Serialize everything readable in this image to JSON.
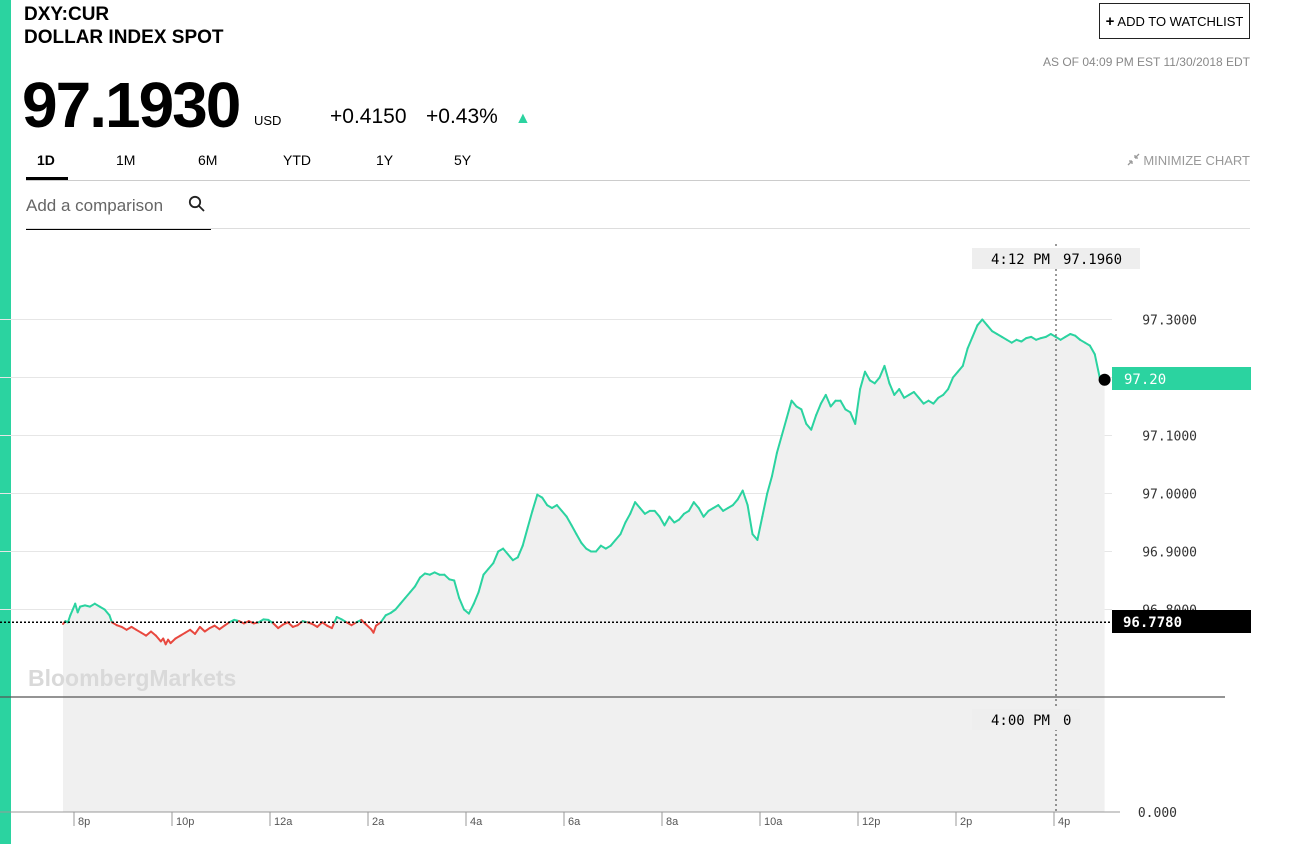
{
  "header": {
    "ticker": "DXY:CUR",
    "name": "DOLLAR INDEX SPOT",
    "price": "97.1930",
    "currency": "USD",
    "change": "+0.4150",
    "change_pct": "+0.43%",
    "watchlist_label": "ADD TO WATCHLIST",
    "as_of": "AS OF 04:09 PM EST 11/30/2018 EDT"
  },
  "tabs": [
    "1D",
    "1M",
    "6M",
    "YTD",
    "1Y",
    "5Y"
  ],
  "active_tab": "1D",
  "minimize_label": "MINIMIZE CHART",
  "compare": {
    "placeholder": "Add a comparison"
  },
  "colors": {
    "accent": "#2bd3a0",
    "up": "#2bd3a0",
    "down": "#e8483f",
    "area": "#f0f0f0"
  },
  "chart_data": {
    "type": "line",
    "watermark": "BloombergMarkets",
    "x_ticks": [
      "8p",
      "10p",
      "12a",
      "2a",
      "4a",
      "6a",
      "8a",
      "10a",
      "12p",
      "2p",
      "4p"
    ],
    "y_ticks": [
      "97.3000",
      "97.1000",
      "97.0000",
      "96.9000",
      "96.8000"
    ],
    "y_extra_tick": "0.000",
    "ylim": [
      96.64,
      97.41
    ],
    "previous_close": 96.778,
    "previous_close_label": "96.7780",
    "last_value": 97.2,
    "last_value_label": "97.20",
    "crosshair": {
      "time": "4:12 PM",
      "value": "97.1960"
    },
    "volume_readout": {
      "time": "4:00 PM",
      "value": "0"
    },
    "series": [
      {
        "values": [
          [
            0,
            96.775
          ],
          [
            0.05,
            96.78
          ],
          [
            0.1,
            96.778
          ],
          [
            0.15,
            96.79
          ],
          [
            0.2,
            96.8
          ],
          [
            0.25,
            96.81
          ],
          [
            0.3,
            96.795
          ],
          [
            0.35,
            96.805
          ],
          [
            0.45,
            96.807
          ],
          [
            0.55,
            96.805
          ],
          [
            0.65,
            96.81
          ],
          [
            0.75,
            96.805
          ],
          [
            0.85,
            96.8
          ],
          [
            0.95,
            96.79
          ],
          [
            1.0,
            96.778
          ],
          [
            1.1,
            96.773
          ],
          [
            1.2,
            96.77
          ],
          [
            1.3,
            96.765
          ],
          [
            1.4,
            96.77
          ],
          [
            1.5,
            96.765
          ],
          [
            1.6,
            96.76
          ],
          [
            1.7,
            96.755
          ],
          [
            1.8,
            96.762
          ],
          [
            1.9,
            96.755
          ],
          [
            2.0,
            96.745
          ],
          [
            2.05,
            96.75
          ],
          [
            2.1,
            96.74
          ],
          [
            2.15,
            96.748
          ],
          [
            2.2,
            96.742
          ],
          [
            2.3,
            96.75
          ],
          [
            2.4,
            96.755
          ],
          [
            2.5,
            96.76
          ],
          [
            2.6,
            96.765
          ],
          [
            2.7,
            96.758
          ],
          [
            2.8,
            96.77
          ],
          [
            2.9,
            96.762
          ],
          [
            3.0,
            96.768
          ],
          [
            3.1,
            96.772
          ],
          [
            3.2,
            96.766
          ],
          [
            3.3,
            96.772
          ],
          [
            3.4,
            96.778
          ],
          [
            3.5,
            96.782
          ],
          [
            3.6,
            96.78
          ],
          [
            3.7,
            96.776
          ],
          [
            3.8,
            96.78
          ],
          [
            3.9,
            96.776
          ],
          [
            4.0,
            96.778
          ],
          [
            4.1,
            96.783
          ],
          [
            4.2,
            96.782
          ],
          [
            4.3,
            96.776
          ],
          [
            4.4,
            96.768
          ],
          [
            4.5,
            96.774
          ],
          [
            4.6,
            96.778
          ],
          [
            4.7,
            96.77
          ],
          [
            4.8,
            96.773
          ],
          [
            4.9,
            96.78
          ],
          [
            5.0,
            96.778
          ],
          [
            5.1,
            96.775
          ],
          [
            5.2,
            96.77
          ],
          [
            5.3,
            96.778
          ],
          [
            5.4,
            96.772
          ],
          [
            5.5,
            96.768
          ],
          [
            5.55,
            96.778
          ],
          [
            5.6,
            96.787
          ],
          [
            5.7,
            96.783
          ],
          [
            5.8,
            96.778
          ],
          [
            5.9,
            96.773
          ],
          [
            6.0,
            96.778
          ],
          [
            6.1,
            96.782
          ],
          [
            6.2,
            96.774
          ],
          [
            6.3,
            96.766
          ],
          [
            6.35,
            96.76
          ],
          [
            6.4,
            96.772
          ],
          [
            6.5,
            96.778
          ],
          [
            6.6,
            96.79
          ],
          [
            6.7,
            96.794
          ],
          [
            6.8,
            96.8
          ],
          [
            6.9,
            96.81
          ],
          [
            7.0,
            96.82
          ],
          [
            7.1,
            96.83
          ],
          [
            7.2,
            96.84
          ],
          [
            7.3,
            96.855
          ],
          [
            7.4,
            96.862
          ],
          [
            7.5,
            96.86
          ],
          [
            7.6,
            96.864
          ],
          [
            7.7,
            96.86
          ],
          [
            7.8,
            96.86
          ],
          [
            7.9,
            96.852
          ],
          [
            8.0,
            96.85
          ],
          [
            8.1,
            96.82
          ],
          [
            8.2,
            96.8
          ],
          [
            8.3,
            96.793
          ],
          [
            8.4,
            96.81
          ],
          [
            8.5,
            96.83
          ],
          [
            8.6,
            96.86
          ],
          [
            8.7,
            96.87
          ],
          [
            8.8,
            96.88
          ],
          [
            8.9,
            96.9
          ],
          [
            9.0,
            96.905
          ],
          [
            9.1,
            96.895
          ],
          [
            9.2,
            96.885
          ],
          [
            9.3,
            96.89
          ],
          [
            9.4,
            96.91
          ],
          [
            9.5,
            96.94
          ],
          [
            9.6,
            96.97
          ],
          [
            9.7,
            96.998
          ],
          [
            9.8,
            96.993
          ],
          [
            9.9,
            96.98
          ],
          [
            10.0,
            96.975
          ],
          [
            10.1,
            96.98
          ],
          [
            10.2,
            96.97
          ],
          [
            10.3,
            96.96
          ],
          [
            10.4,
            96.945
          ],
          [
            10.5,
            96.93
          ],
          [
            10.6,
            96.915
          ],
          [
            10.7,
            96.905
          ],
          [
            10.8,
            96.9
          ],
          [
            10.9,
            96.9
          ],
          [
            11.0,
            96.91
          ],
          [
            11.1,
            96.905
          ],
          [
            11.2,
            96.91
          ],
          [
            11.3,
            96.92
          ],
          [
            11.4,
            96.93
          ],
          [
            11.5,
            96.95
          ],
          [
            11.6,
            96.965
          ],
          [
            11.7,
            96.985
          ],
          [
            11.8,
            96.975
          ],
          [
            11.9,
            96.965
          ],
          [
            12.0,
            96.97
          ],
          [
            12.1,
            96.97
          ],
          [
            12.2,
            96.96
          ],
          [
            12.3,
            96.945
          ],
          [
            12.4,
            96.96
          ],
          [
            12.5,
            96.95
          ],
          [
            12.6,
            96.955
          ],
          [
            12.7,
            96.965
          ],
          [
            12.8,
            96.97
          ],
          [
            12.9,
            96.985
          ],
          [
            13.0,
            96.975
          ],
          [
            13.1,
            96.96
          ],
          [
            13.2,
            96.97
          ],
          [
            13.3,
            96.975
          ],
          [
            13.4,
            96.98
          ],
          [
            13.5,
            96.97
          ],
          [
            13.6,
            96.975
          ],
          [
            13.7,
            96.98
          ],
          [
            13.8,
            96.99
          ],
          [
            13.9,
            97.005
          ],
          [
            14.0,
            96.98
          ],
          [
            14.1,
            96.93
          ],
          [
            14.2,
            96.92
          ],
          [
            14.3,
            96.96
          ],
          [
            14.4,
            97.0
          ],
          [
            14.5,
            97.03
          ],
          [
            14.6,
            97.07
          ],
          [
            14.7,
            97.1
          ],
          [
            14.8,
            97.13
          ],
          [
            14.9,
            97.16
          ],
          [
            15.0,
            97.15
          ],
          [
            15.1,
            97.145
          ],
          [
            15.2,
            97.12
          ],
          [
            15.3,
            97.11
          ],
          [
            15.4,
            97.135
          ],
          [
            15.5,
            97.155
          ],
          [
            15.6,
            97.17
          ],
          [
            15.7,
            97.15
          ],
          [
            15.8,
            97.16
          ],
          [
            15.9,
            97.16
          ],
          [
            16.0,
            97.145
          ],
          [
            16.1,
            97.14
          ],
          [
            16.2,
            97.12
          ],
          [
            16.3,
            97.18
          ],
          [
            16.4,
            97.21
          ],
          [
            16.5,
            97.195
          ],
          [
            16.6,
            97.19
          ],
          [
            16.7,
            97.2
          ],
          [
            16.8,
            97.22
          ],
          [
            16.9,
            97.19
          ],
          [
            17.0,
            97.17
          ],
          [
            17.1,
            97.18
          ],
          [
            17.2,
            97.165
          ],
          [
            17.3,
            97.17
          ],
          [
            17.4,
            97.175
          ],
          [
            17.5,
            97.165
          ],
          [
            17.6,
            97.155
          ],
          [
            17.7,
            97.16
          ],
          [
            17.8,
            97.155
          ],
          [
            17.9,
            97.165
          ],
          [
            18.0,
            97.17
          ],
          [
            18.1,
            97.18
          ],
          [
            18.2,
            97.2
          ],
          [
            18.3,
            97.21
          ],
          [
            18.4,
            97.22
          ],
          [
            18.5,
            97.25
          ],
          [
            18.6,
            97.27
          ],
          [
            18.7,
            97.29
          ],
          [
            18.8,
            97.3
          ],
          [
            18.9,
            97.29
          ],
          [
            19.0,
            97.28
          ],
          [
            19.1,
            97.275
          ],
          [
            19.2,
            97.27
          ],
          [
            19.3,
            97.265
          ],
          [
            19.4,
            97.26
          ],
          [
            19.5,
            97.265
          ],
          [
            19.6,
            97.262
          ],
          [
            19.7,
            97.268
          ],
          [
            19.8,
            97.27
          ],
          [
            19.9,
            97.265
          ],
          [
            20.0,
            97.268
          ],
          [
            20.1,
            97.27
          ],
          [
            20.2,
            97.275
          ],
          [
            20.3,
            97.27
          ],
          [
            20.4,
            97.265
          ],
          [
            20.5,
            97.27
          ],
          [
            20.6,
            97.275
          ],
          [
            20.7,
            97.272
          ],
          [
            20.8,
            97.265
          ],
          [
            20.9,
            97.26
          ],
          [
            21.0,
            97.255
          ],
          [
            21.1,
            97.24
          ],
          [
            21.2,
            97.2
          ],
          [
            21.3,
            97.196
          ]
        ]
      }
    ]
  }
}
